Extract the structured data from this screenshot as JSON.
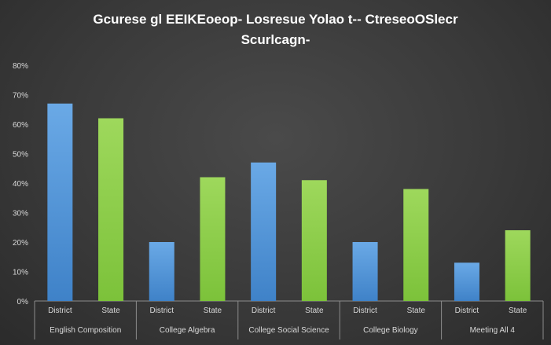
{
  "chart_data": {
    "type": "bar",
    "title_lines": [
      "Gcurese gl EEIKEoeop- Losresue Yolao t-- CtreseoOSlecr",
      "Scurlcagn-"
    ],
    "groups": [
      {
        "name": "English Composition",
        "bars": [
          {
            "label": "District",
            "value": 67
          },
          {
            "label": "State",
            "value": 62
          }
        ]
      },
      {
        "name": "College Algebra",
        "bars": [
          {
            "label": "District",
            "value": 20
          },
          {
            "label": "State",
            "value": 42
          }
        ]
      },
      {
        "name": "College Social Science",
        "bars": [
          {
            "label": "District",
            "value": 47
          },
          {
            "label": "State",
            "value": 41
          }
        ]
      },
      {
        "name": "College Biology",
        "bars": [
          {
            "label": "District",
            "value": 20
          },
          {
            "label": "State",
            "value": 38
          }
        ]
      },
      {
        "name": "Meeting All 4",
        "bars": [
          {
            "label": "District",
            "value": 13
          },
          {
            "label": "State",
            "value": 24
          }
        ]
      }
    ],
    "y_ticks": [
      "0%",
      "10%",
      "20%",
      "30%",
      "40%",
      "50%",
      "60%",
      "70%",
      "80%"
    ],
    "ylim": [
      0,
      80
    ],
    "grid": false,
    "legend": "none",
    "colors": {
      "District": "#5b9bd5",
      "State": "#92d050"
    }
  }
}
